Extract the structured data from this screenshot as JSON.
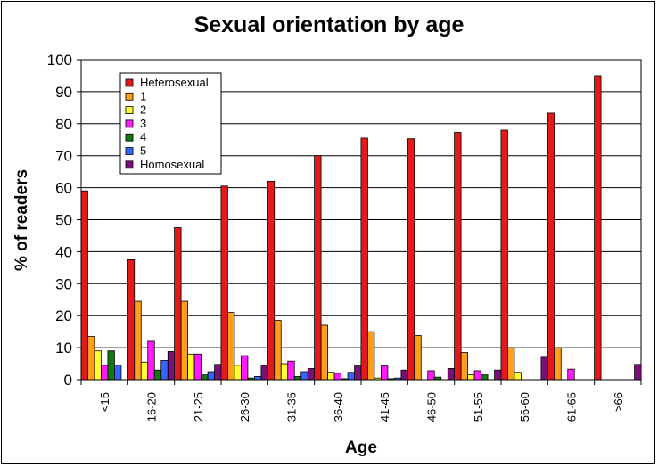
{
  "chart_data": {
    "type": "bar",
    "title": "Sexual orientation by age",
    "xlabel": "Age",
    "ylabel": "% of readers",
    "ylim": [
      0,
      100
    ],
    "yticks": [
      0,
      10,
      20,
      30,
      40,
      50,
      60,
      70,
      80,
      90,
      100
    ],
    "grid": true,
    "legend_position": "top-left",
    "categories": [
      "<15",
      "16-20",
      "21-25",
      "26-30",
      "31-35",
      "36-40",
      "41-45",
      "46-50",
      "51-55",
      "56-60",
      "61-65",
      ">66"
    ],
    "series": [
      {
        "name": "Heterosexual",
        "color": "#e31a1a",
        "values": [
          59,
          37.5,
          47.5,
          60.5,
          62,
          70,
          75.5,
          75.3,
          77.3,
          78,
          83.3,
          95
        ]
      },
      {
        "name": "1",
        "color": "#ff9f1a",
        "values": [
          13.5,
          24.5,
          24.5,
          21,
          18.5,
          17,
          15,
          13.8,
          8.5,
          10,
          10,
          0
        ]
      },
      {
        "name": "2",
        "color": "#ffff33",
        "values": [
          9,
          5.5,
          8,
          4.5,
          5,
          2.3,
          0.5,
          0,
          1.5,
          2.3,
          0,
          0
        ]
      },
      {
        "name": "3",
        "color": "#ff1aff",
        "values": [
          4.5,
          12,
          8,
          7.5,
          5.8,
          2,
          4.3,
          2.8,
          2.8,
          0,
          3.3,
          0
        ]
      },
      {
        "name": "4",
        "color": "#0f7a0f",
        "values": [
          9,
          3,
          1.5,
          0.5,
          1,
          0.3,
          0.3,
          0.8,
          1.5,
          0,
          0,
          0
        ]
      },
      {
        "name": "5",
        "color": "#3366ff",
        "values": [
          4.5,
          6,
          2.5,
          1,
          2.5,
          2.3,
          0.5,
          0,
          0,
          0,
          0,
          0
        ]
      },
      {
        "name": "Homosexual",
        "color": "#7a0f7a",
        "values": [
          0,
          8.8,
          4.8,
          4.3,
          3.5,
          4.3,
          3,
          3.5,
          3,
          7,
          0,
          4.8
        ]
      }
    ]
  }
}
